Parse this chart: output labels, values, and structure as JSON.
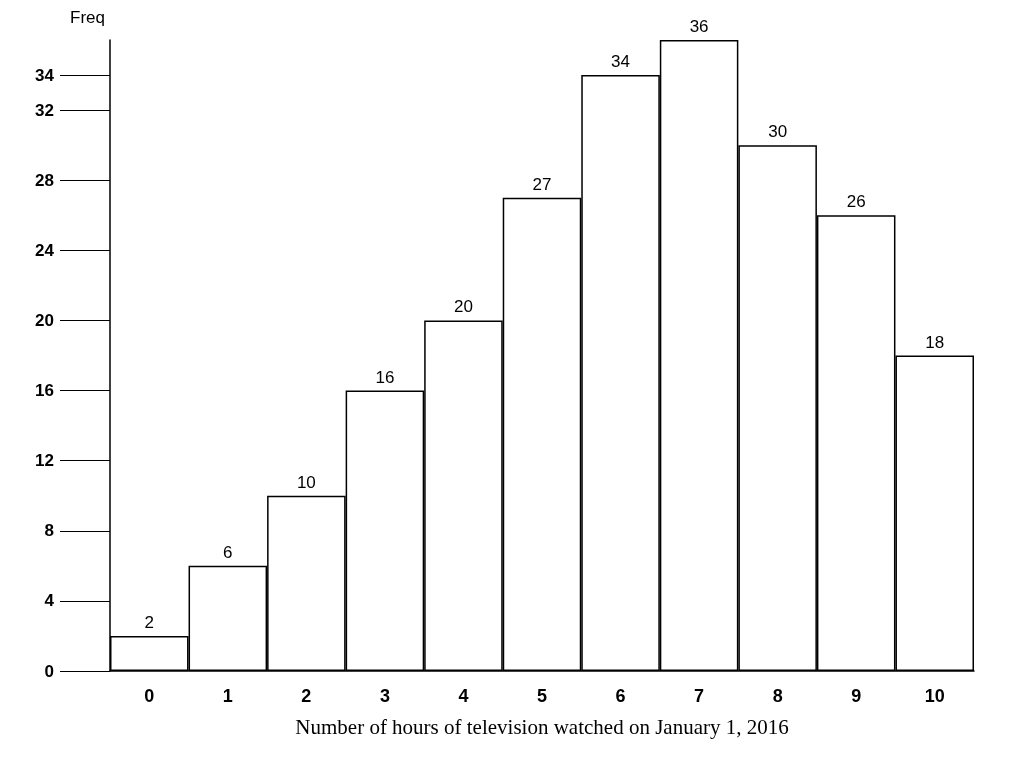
{
  "chart_data": {
    "type": "bar",
    "xlabel": "Number of hours of television watched on January 1, 2016",
    "ylabel": "Freq",
    "categories": [
      "0",
      "1",
      "2",
      "3",
      "4",
      "5",
      "6",
      "7",
      "8",
      "9",
      "10"
    ],
    "values": [
      2,
      6,
      10,
      16,
      20,
      27,
      34,
      36,
      30,
      26,
      18
    ],
    "color": "#ffffff",
    "ylim": [
      0,
      36
    ],
    "yticks": [
      0,
      4,
      8,
      12,
      16,
      20,
      24,
      28,
      32,
      34
    ],
    "data_labels": true,
    "grid": false
  }
}
